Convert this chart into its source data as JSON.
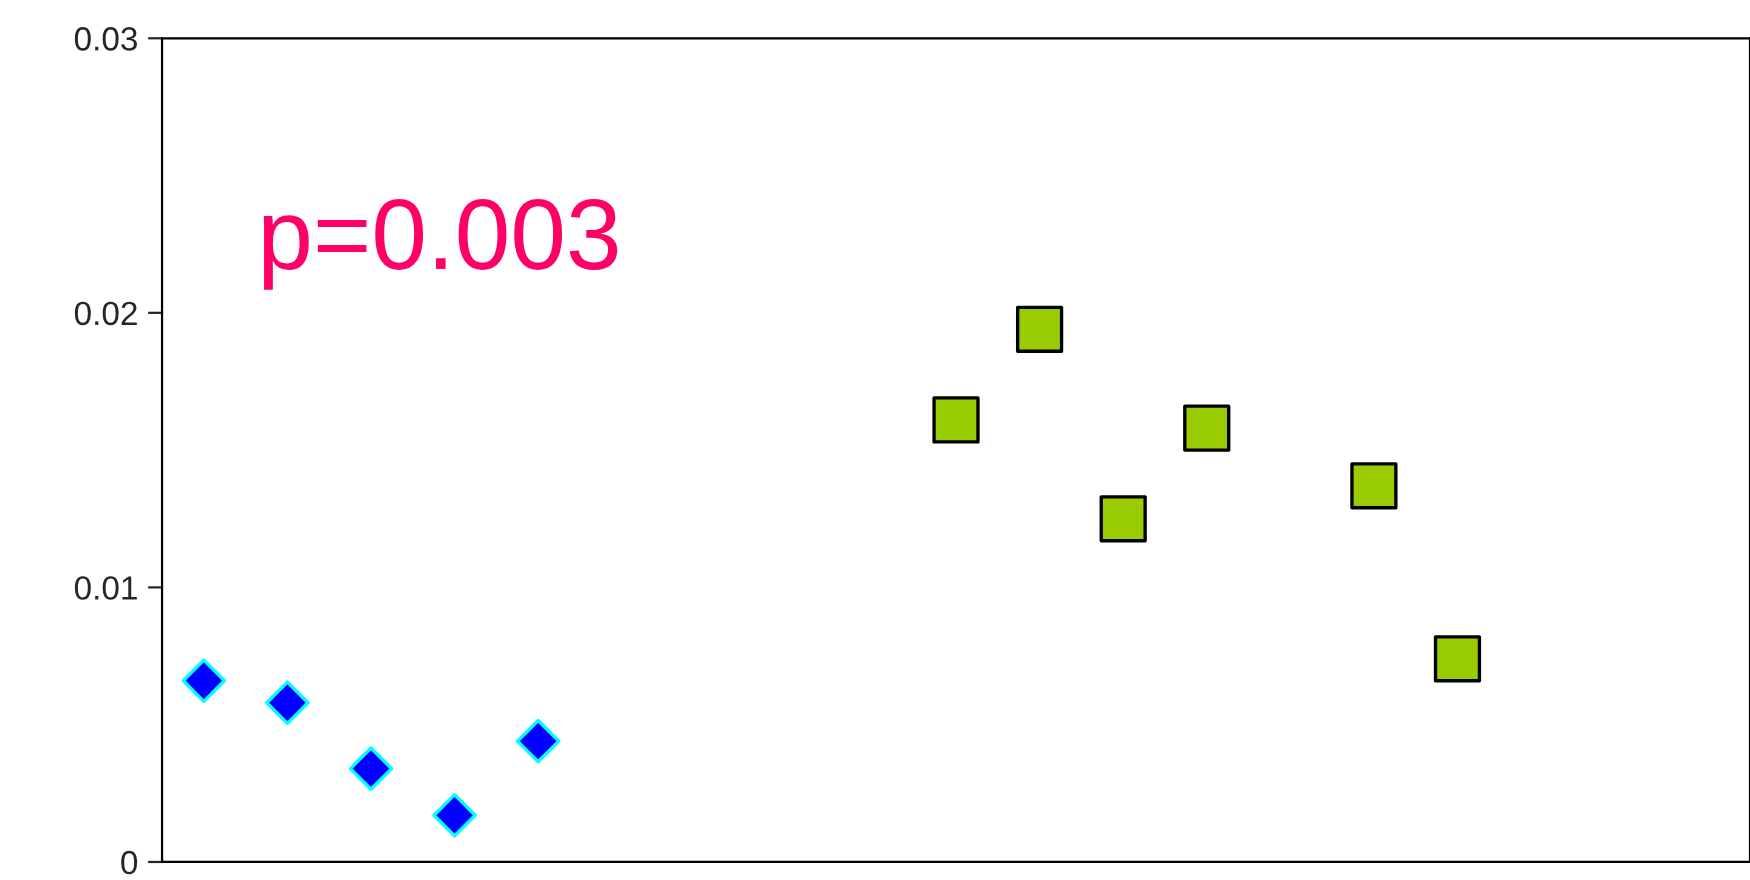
{
  "chart_data": {
    "type": "scatter",
    "categories": [
      null,
      null,
      null,
      null,
      null,
      null,
      null,
      null,
      null,
      null,
      null,
      null,
      null,
      null,
      null,
      null,
      null,
      null,
      null
    ],
    "series": [
      {
        "color": "#0000ff",
        "marker": "diamond",
        "values": [
          0.0066,
          0.0058,
          0.0034,
          0.0017,
          0.0044,
          null,
          null,
          null,
          null,
          null,
          null,
          null,
          null,
          null,
          null,
          null,
          null,
          null,
          null
        ]
      },
      {
        "color": "#99cc00",
        "marker": "square",
        "values": [
          null,
          null,
          null,
          null,
          null,
          null,
          null,
          null,
          null,
          0.0161,
          0.0194,
          0.0125,
          0.0158,
          null,
          0.0137,
          0.0074,
          null,
          null,
          null
        ]
      }
    ],
    "ylim": [
      0,
      0.03
    ],
    "yticks": [
      0,
      0.01,
      0.02,
      0.03
    ],
    "tick_labels": "y",
    "grid": false,
    "annotations": [
      {
        "text": "p=0.003"
      }
    ]
  }
}
